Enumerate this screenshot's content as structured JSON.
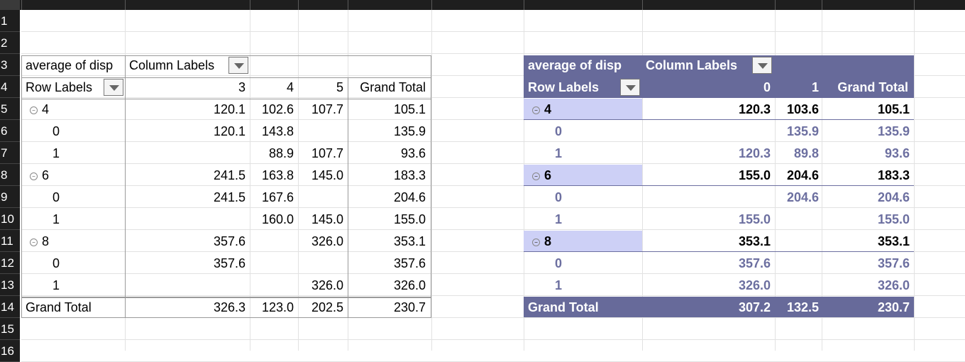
{
  "row_numbers": [
    "1",
    "2",
    "3",
    "4",
    "5",
    "6",
    "7",
    "8",
    "9",
    "10",
    "11",
    "12",
    "13",
    "14",
    "15",
    "16"
  ],
  "left_pivot": {
    "value_field": "average of disp",
    "col_labels": "Column Labels",
    "row_labels": "Row Labels",
    "col_keys": [
      "3",
      "4",
      "5"
    ],
    "grand_total_label": "Grand Total",
    "rows": [
      {
        "label": "4",
        "vals": [
          "120.1",
          "102.6",
          "107.7"
        ],
        "total": "105.1",
        "group": true
      },
      {
        "label": "0",
        "vals": [
          "120.1",
          "143.8",
          ""
        ],
        "total": "135.9",
        "group": false
      },
      {
        "label": "1",
        "vals": [
          "",
          "88.9",
          "107.7"
        ],
        "total": "93.6",
        "group": false
      },
      {
        "label": "6",
        "vals": [
          "241.5",
          "163.8",
          "145.0"
        ],
        "total": "183.3",
        "group": true
      },
      {
        "label": "0",
        "vals": [
          "241.5",
          "167.6",
          ""
        ],
        "total": "204.6",
        "group": false
      },
      {
        "label": "1",
        "vals": [
          "",
          "160.0",
          "145.0"
        ],
        "total": "155.0",
        "group": false
      },
      {
        "label": "8",
        "vals": [
          "357.6",
          "",
          "326.0"
        ],
        "total": "353.1",
        "group": true
      },
      {
        "label": "0",
        "vals": [
          "357.6",
          "",
          ""
        ],
        "total": "357.6",
        "group": false
      },
      {
        "label": "1",
        "vals": [
          "",
          "",
          "326.0"
        ],
        "total": "326.0",
        "group": false
      }
    ],
    "grand_total_row": {
      "vals": [
        "326.3",
        "123.0",
        "202.5"
      ],
      "total": "230.7"
    }
  },
  "right_pivot": {
    "value_field": "average of disp",
    "col_labels": "Column Labels",
    "row_labels": "Row Labels",
    "col_keys": [
      "0",
      "1"
    ],
    "grand_total_label": "Grand Total",
    "rows": [
      {
        "label": "4",
        "vals": [
          "120.3",
          "103.6"
        ],
        "total": "105.1",
        "group": true
      },
      {
        "label": "0",
        "vals": [
          "",
          "135.9"
        ],
        "total": "135.9",
        "group": false
      },
      {
        "label": "1",
        "vals": [
          "120.3",
          "89.8"
        ],
        "total": "93.6",
        "group": false
      },
      {
        "label": "6",
        "vals": [
          "155.0",
          "204.6"
        ],
        "total": "183.3",
        "group": true
      },
      {
        "label": "0",
        "vals": [
          "",
          "204.6"
        ],
        "total": "204.6",
        "group": false
      },
      {
        "label": "1",
        "vals": [
          "155.0",
          ""
        ],
        "total": "155.0",
        "group": false
      },
      {
        "label": "8",
        "vals": [
          "353.1",
          ""
        ],
        "total": "353.1",
        "group": true
      },
      {
        "label": "0",
        "vals": [
          "357.6",
          ""
        ],
        "total": "357.6",
        "group": false
      },
      {
        "label": "1",
        "vals": [
          "326.0",
          ""
        ],
        "total": "326.0",
        "group": false
      }
    ],
    "grand_total_row": {
      "vals": [
        "307.2",
        "132.5"
      ],
      "total": "230.7"
    }
  },
  "colors": {
    "pivot_header": "#676a9a",
    "group_highlight": "#cdd0f6",
    "sub_text": "#6c6fa0"
  },
  "icons": {
    "dropdown": "filter-dropdown-icon",
    "expand": "collapse-toggle-icon"
  }
}
